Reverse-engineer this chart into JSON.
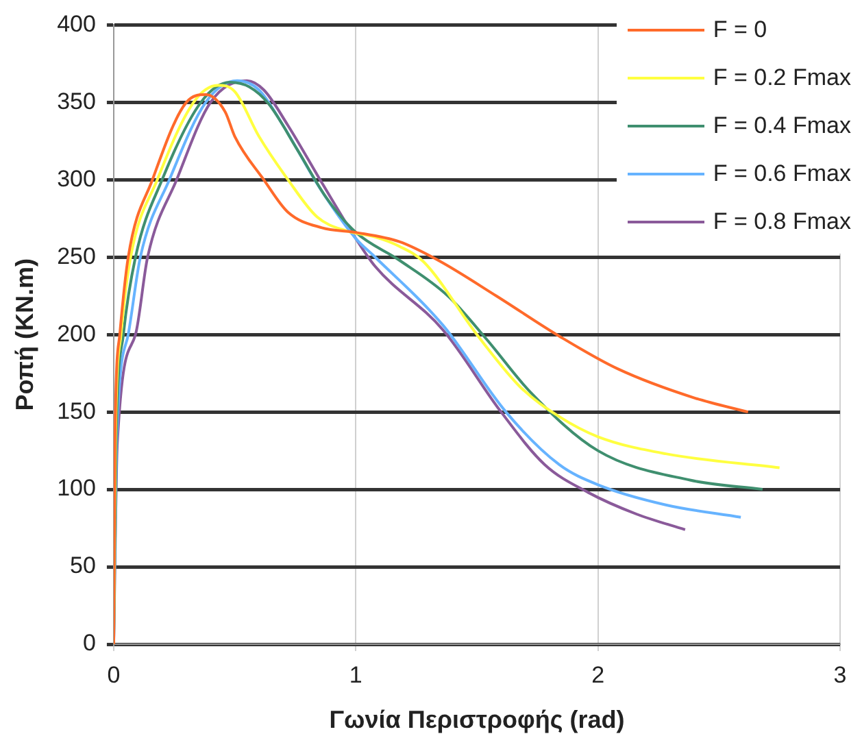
{
  "chart_data": {
    "type": "line",
    "xlabel": "Γωνία Περιστροφής (rad)",
    "ylabel": "Ροπή (KN.m)",
    "xlim": [
      0,
      3
    ],
    "xticks": [
      0,
      1,
      2,
      3
    ],
    "ylim": [
      0,
      400
    ],
    "yticks": [
      0,
      50,
      100,
      150,
      200,
      250,
      300,
      350,
      400
    ],
    "grid": true,
    "legend": "top right",
    "marker": "none",
    "line_style": "solid",
    "series": [
      {
        "name": "F = 0",
        "color": "#ff6a2a",
        "x": [
          0,
          0.005,
          0.025,
          0.06,
          0.16,
          0.3,
          0.38,
          0.46,
          0.5,
          0.62,
          0.72,
          0.86,
          1.0,
          1.18,
          1.34,
          1.58,
          1.84,
          2.08,
          2.4,
          2.62
        ],
        "values": [
          0,
          130,
          200,
          250,
          300,
          350,
          355,
          344,
          328,
          300,
          279,
          269,
          266,
          260,
          248,
          225,
          199,
          178,
          159,
          150
        ]
      },
      {
        "name": "F = 0.2 Fmax",
        "color": "#ffff40",
        "x": [
          0,
          0.007,
          0.03,
          0.07,
          0.18,
          0.33,
          0.43,
          0.5,
          0.6,
          0.72,
          0.84,
          0.96,
          1.08,
          1.18,
          1.28,
          1.5,
          1.68,
          1.84,
          2.0,
          2.28,
          2.75
        ],
        "values": [
          0,
          130,
          200,
          250,
          300,
          350,
          361,
          357,
          328,
          300,
          276,
          267,
          263,
          257,
          247,
          200,
          166,
          147,
          134,
          123,
          114
        ]
      },
      {
        "name": "F = 0.4 Fmax",
        "color": "#3f8f6f",
        "x": [
          0,
          0.01,
          0.04,
          0.09,
          0.2,
          0.36,
          0.48,
          0.56,
          0.64,
          0.76,
          0.88,
          1.0,
          1.18,
          1.38,
          1.54,
          1.72,
          2.0,
          2.38,
          2.68
        ],
        "values": [
          0,
          130,
          200,
          250,
          300,
          350,
          363,
          360,
          349,
          319,
          288,
          266,
          248,
          225,
          197,
          163,
          125,
          106,
          100
        ]
      },
      {
        "name": "F = 0.6 Fmax",
        "color": "#66b3ff",
        "x": [
          0,
          0.012,
          0.06,
          0.11,
          0.23,
          0.38,
          0.51,
          0.6,
          0.7,
          0.85,
          1.0,
          1.08,
          1.36,
          1.62,
          1.84,
          2.0,
          2.28,
          2.59
        ],
        "values": [
          0,
          130,
          200,
          250,
          300,
          350,
          364,
          358,
          335,
          295,
          262,
          250,
          206,
          150,
          116,
          103,
          90,
          82
        ]
      },
      {
        "name": "F = 0.8 Fmax",
        "color": "#8a5a9a",
        "x": [
          0,
          0.015,
          0.09,
          0.14,
          0.26,
          0.4,
          0.55,
          0.62,
          0.72,
          0.86,
          1.0,
          1.08,
          1.36,
          1.6,
          1.78,
          1.96,
          2.16,
          2.36
        ],
        "values": [
          0,
          130,
          200,
          250,
          300,
          350,
          364,
          358,
          335,
          298,
          262,
          244,
          203,
          150,
          116,
          98,
          84,
          74
        ]
      }
    ]
  }
}
